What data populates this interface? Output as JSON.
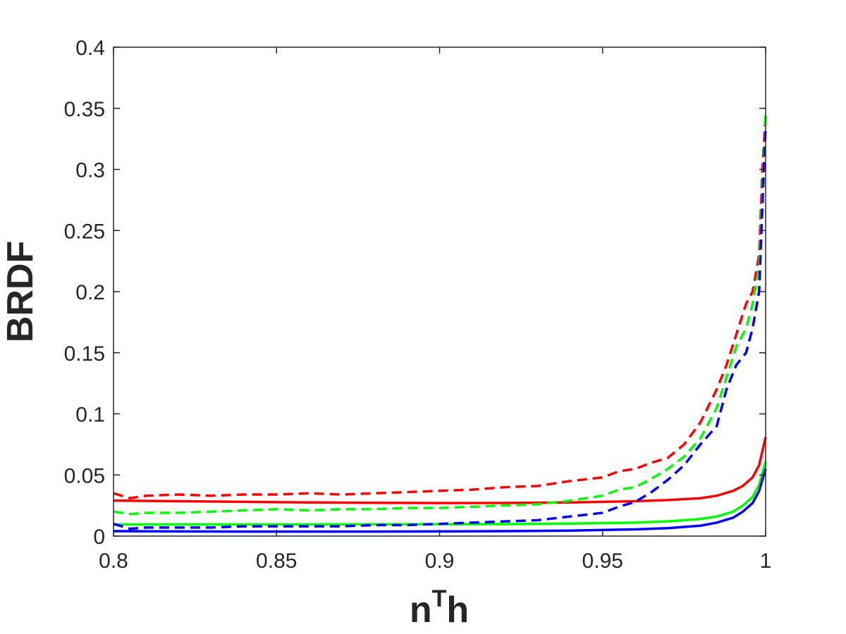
{
  "chart_data": {
    "type": "line",
    "title": "",
    "xlabel_base": "n",
    "xlabel_superscript": "T",
    "xlabel_tail": "h",
    "ylabel": "BRDF",
    "xlim": [
      0.8,
      1.0
    ],
    "ylim": [
      0,
      0.4
    ],
    "xticks": [
      0.8,
      0.85,
      0.9,
      0.95,
      1.0
    ],
    "xtick_labels": [
      "0.8",
      "0.85",
      "0.9",
      "0.95",
      "1"
    ],
    "yticks": [
      0,
      0.05,
      0.1,
      0.15,
      0.2,
      0.25,
      0.3,
      0.35,
      0.4
    ],
    "ytick_labels": [
      "0",
      "0.05",
      "0.1",
      "0.15",
      "0.2",
      "0.25",
      "0.3",
      "0.35",
      "0.4"
    ],
    "grid": false,
    "legend": "none",
    "series": [
      {
        "color": "#ff0000",
        "style": "solid",
        "x": [
          0.8,
          0.82,
          0.84,
          0.86,
          0.88,
          0.9,
          0.92,
          0.94,
          0.96,
          0.97,
          0.98,
          0.985,
          0.99,
          0.993,
          0.996,
          0.998,
          1.0
        ],
        "y": [
          0.029,
          0.0285,
          0.028,
          0.0275,
          0.0272,
          0.027,
          0.0271,
          0.0275,
          0.0285,
          0.0295,
          0.031,
          0.033,
          0.037,
          0.041,
          0.048,
          0.058,
          0.081
        ]
      },
      {
        "color": "#00ff00",
        "style": "solid",
        "x": [
          0.8,
          0.82,
          0.84,
          0.86,
          0.88,
          0.9,
          0.92,
          0.94,
          0.96,
          0.97,
          0.98,
          0.985,
          0.99,
          0.993,
          0.996,
          0.998,
          1.0
        ],
        "y": [
          0.0095,
          0.0095,
          0.0095,
          0.0095,
          0.0096,
          0.0097,
          0.0098,
          0.0102,
          0.011,
          0.012,
          0.014,
          0.016,
          0.02,
          0.025,
          0.032,
          0.042,
          0.061
        ]
      },
      {
        "color": "#0000ff",
        "style": "solid",
        "x": [
          0.8,
          0.82,
          0.84,
          0.86,
          0.88,
          0.9,
          0.92,
          0.94,
          0.96,
          0.97,
          0.98,
          0.985,
          0.99,
          0.993,
          0.996,
          0.998,
          1.0
        ],
        "y": [
          0.004,
          0.0038,
          0.0037,
          0.0037,
          0.0037,
          0.0038,
          0.004,
          0.0045,
          0.0055,
          0.0065,
          0.0085,
          0.011,
          0.015,
          0.02,
          0.027,
          0.037,
          0.055
        ]
      },
      {
        "color": "#ff0000",
        "style": "dashed",
        "x": [
          0.8,
          0.805,
          0.81,
          0.82,
          0.83,
          0.84,
          0.85,
          0.86,
          0.87,
          0.88,
          0.89,
          0.9,
          0.91,
          0.92,
          0.93,
          0.94,
          0.95,
          0.955,
          0.96,
          0.965,
          0.97,
          0.975,
          0.98,
          0.985,
          0.988,
          0.991,
          0.994,
          0.996,
          0.998,
          0.999,
          1.0
        ],
        "y": [
          0.035,
          0.031,
          0.033,
          0.034,
          0.033,
          0.034,
          0.034,
          0.035,
          0.034,
          0.035,
          0.036,
          0.037,
          0.038,
          0.04,
          0.041,
          0.045,
          0.048,
          0.053,
          0.055,
          0.06,
          0.064,
          0.075,
          0.093,
          0.12,
          0.14,
          0.165,
          0.19,
          0.2,
          0.23,
          0.3,
          0.345
        ]
      },
      {
        "color": "#00ff00",
        "style": "dashed",
        "x": [
          0.8,
          0.805,
          0.81,
          0.82,
          0.83,
          0.84,
          0.85,
          0.86,
          0.87,
          0.88,
          0.89,
          0.9,
          0.91,
          0.92,
          0.93,
          0.94,
          0.95,
          0.955,
          0.96,
          0.965,
          0.97,
          0.975,
          0.98,
          0.985,
          0.988,
          0.991,
          0.994,
          0.996,
          0.998,
          0.999,
          1.0
        ],
        "y": [
          0.02,
          0.018,
          0.019,
          0.019,
          0.02,
          0.021,
          0.022,
          0.021,
          0.022,
          0.022,
          0.023,
          0.023,
          0.024,
          0.025,
          0.026,
          0.029,
          0.033,
          0.038,
          0.04,
          0.047,
          0.055,
          0.065,
          0.08,
          0.105,
          0.13,
          0.155,
          0.17,
          0.19,
          0.22,
          0.28,
          0.345
        ]
      },
      {
        "color": "#0000ff",
        "style": "dashed",
        "x": [
          0.8,
          0.805,
          0.81,
          0.82,
          0.83,
          0.84,
          0.85,
          0.86,
          0.87,
          0.88,
          0.89,
          0.9,
          0.91,
          0.92,
          0.93,
          0.94,
          0.95,
          0.955,
          0.96,
          0.965,
          0.97,
          0.975,
          0.98,
          0.985,
          0.988,
          0.991,
          0.994,
          0.996,
          0.998,
          0.999,
          1.0
        ],
        "y": [
          0.01,
          0.006,
          0.007,
          0.007,
          0.007,
          0.008,
          0.008,
          0.008,
          0.008,
          0.009,
          0.009,
          0.01,
          0.011,
          0.012,
          0.013,
          0.016,
          0.019,
          0.024,
          0.028,
          0.036,
          0.046,
          0.058,
          0.075,
          0.09,
          0.12,
          0.14,
          0.15,
          0.17,
          0.2,
          0.27,
          0.335
        ]
      }
    ]
  }
}
